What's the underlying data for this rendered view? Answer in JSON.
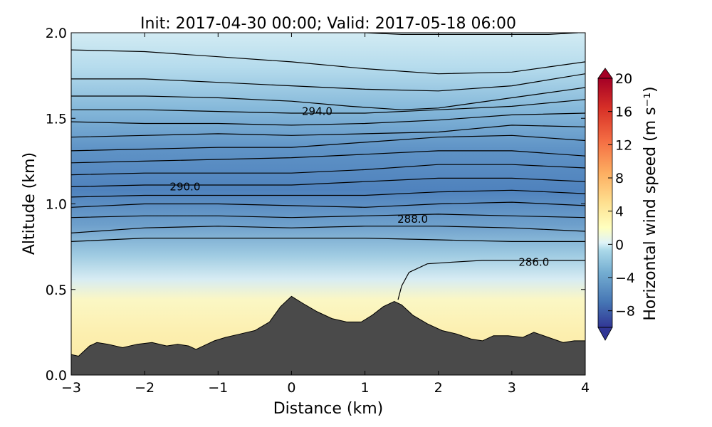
{
  "chart_data": {
    "type": "contourf",
    "title": "Init: 2017-04-30 00:00; Valid: 2017-05-18 06:00",
    "xlabel": "Distance (km)",
    "ylabel": "Altitude (km)",
    "xlim": [
      -3,
      4
    ],
    "ylim": [
      0.0,
      2.0
    ],
    "x_ticks": [
      {
        "value": -3,
        "label": "−3"
      },
      {
        "value": -2,
        "label": "−2"
      },
      {
        "value": -1,
        "label": "−1"
      },
      {
        "value": 0,
        "label": "0"
      },
      {
        "value": 1,
        "label": "1"
      },
      {
        "value": 2,
        "label": "2"
      },
      {
        "value": 3,
        "label": "3"
      },
      {
        "value": 4,
        "label": "4"
      }
    ],
    "y_ticks": [
      {
        "value": 0.0,
        "label": "0.0"
      },
      {
        "value": 0.5,
        "label": "0.5"
      },
      {
        "value": 1.0,
        "label": "1.0"
      },
      {
        "value": 1.5,
        "label": "1.5"
      },
      {
        "value": 2.0,
        "label": "2.0"
      }
    ],
    "colorbar": {
      "label": "Horizontal wind speed (m s⁻¹)",
      "vmin": -10,
      "vmax": 20,
      "ticks": [
        {
          "value": 20,
          "label": "20"
        },
        {
          "value": 16,
          "label": "16"
        },
        {
          "value": 12,
          "label": "12"
        },
        {
          "value": 8,
          "label": "8"
        },
        {
          "value": 4,
          "label": "4"
        },
        {
          "value": 0,
          "label": "0"
        },
        {
          "value": -4,
          "label": "−4"
        },
        {
          "value": -8,
          "label": "−8"
        }
      ],
      "colors": [
        "#313695",
        "#4575b4",
        "#74add1",
        "#abd9e9",
        "#e0f3f8",
        "#ffffbf",
        "#fee090",
        "#fdae61",
        "#f46d43",
        "#d73027",
        "#a50026"
      ]
    },
    "terrain": {
      "color": "#4a4a4a",
      "x": [
        -3.0,
        -2.9,
        -2.75,
        -2.65,
        -2.5,
        -2.3,
        -2.1,
        -1.9,
        -1.7,
        -1.55,
        -1.4,
        -1.3,
        -1.2,
        -1.05,
        -0.9,
        -0.7,
        -0.5,
        -0.3,
        -0.15,
        0.0,
        0.15,
        0.35,
        0.55,
        0.75,
        0.95,
        1.1,
        1.25,
        1.4,
        1.5,
        1.65,
        1.85,
        2.05,
        2.25,
        2.45,
        2.6,
        2.75,
        2.95,
        3.15,
        3.3,
        3.5,
        3.7,
        3.85,
        4.0
      ],
      "y": [
        0.12,
        0.11,
        0.17,
        0.19,
        0.18,
        0.16,
        0.18,
        0.19,
        0.17,
        0.18,
        0.17,
        0.15,
        0.17,
        0.2,
        0.22,
        0.24,
        0.26,
        0.31,
        0.4,
        0.46,
        0.42,
        0.37,
        0.33,
        0.31,
        0.31,
        0.35,
        0.4,
        0.43,
        0.41,
        0.35,
        0.3,
        0.26,
        0.24,
        0.21,
        0.2,
        0.23,
        0.23,
        0.22,
        0.25,
        0.22,
        0.19,
        0.2,
        0.2
      ]
    },
    "contours": [
      {
        "level": 286.0,
        "label": "286.0",
        "label_x": 3.3,
        "label_y": 0.66,
        "x": [
          1.45,
          1.5,
          1.6,
          1.85,
          2.2,
          2.6,
          3.0,
          3.3,
          4.0
        ],
        "y": [
          0.44,
          0.52,
          0.6,
          0.65,
          0.66,
          0.67,
          0.67,
          0.67,
          0.67
        ]
      },
      {
        "level": 287.0,
        "x": [
          -3.0,
          -2.0,
          -1.0,
          0.0,
          1.0,
          2.0,
          3.0,
          4.0
        ],
        "y": [
          0.78,
          0.8,
          0.8,
          0.8,
          0.8,
          0.79,
          0.78,
          0.78
        ]
      },
      {
        "level": 288.0,
        "label": "288.0",
        "label_x": 1.65,
        "label_y": 0.91,
        "x": [
          -3.0,
          -2.0,
          -1.0,
          0.0,
          1.0,
          2.0,
          3.0,
          4.0
        ],
        "y": [
          0.83,
          0.86,
          0.87,
          0.86,
          0.87,
          0.87,
          0.86,
          0.84
        ]
      },
      {
        "level": 288.5,
        "x": [
          -3.0,
          -2.0,
          -1.0,
          0.0,
          1.0,
          2.0,
          3.0,
          4.0
        ],
        "y": [
          0.92,
          0.93,
          0.93,
          0.92,
          0.93,
          0.94,
          0.93,
          0.92
        ]
      },
      {
        "level": 289.0,
        "x": [
          -3.0,
          -2.0,
          -1.0,
          0.0,
          1.0,
          2.0,
          3.0,
          4.0
        ],
        "y": [
          0.98,
          1.0,
          1.0,
          0.99,
          0.98,
          1.0,
          1.01,
          0.99
        ]
      },
      {
        "level": 289.5,
        "x": [
          -3.0,
          -2.0,
          -1.0,
          0.0,
          1.0,
          2.0,
          3.0,
          4.0
        ],
        "y": [
          1.04,
          1.05,
          1.05,
          1.05,
          1.05,
          1.07,
          1.08,
          1.06
        ]
      },
      {
        "level": 290.0,
        "label": "290.0",
        "label_x": -1.45,
        "label_y": 1.1,
        "x": [
          -3.0,
          -2.0,
          -1.0,
          0.0,
          1.0,
          2.0,
          3.0,
          4.0
        ],
        "y": [
          1.1,
          1.11,
          1.11,
          1.11,
          1.13,
          1.15,
          1.15,
          1.13
        ]
      },
      {
        "level": 290.5,
        "x": [
          -3.0,
          -2.0,
          -1.0,
          0.0,
          1.0,
          2.0,
          3.0,
          4.0
        ],
        "y": [
          1.17,
          1.18,
          1.18,
          1.18,
          1.2,
          1.23,
          1.23,
          1.21
        ]
      },
      {
        "level": 291.0,
        "x": [
          -3.0,
          -2.0,
          -1.0,
          0.0,
          1.0,
          2.0,
          3.0,
          4.0
        ],
        "y": [
          1.24,
          1.25,
          1.26,
          1.27,
          1.29,
          1.31,
          1.31,
          1.28
        ]
      },
      {
        "level": 291.5,
        "x": [
          -3.0,
          -2.0,
          -1.0,
          0.0,
          1.0,
          2.0,
          3.0,
          4.0
        ],
        "y": [
          1.31,
          1.32,
          1.33,
          1.33,
          1.36,
          1.39,
          1.4,
          1.37
        ]
      },
      {
        "level": 292.0,
        "x": [
          -3.0,
          -2.0,
          -1.0,
          0.0,
          1.0,
          2.0,
          3.0,
          4.0
        ],
        "y": [
          1.39,
          1.4,
          1.41,
          1.4,
          1.41,
          1.42,
          1.46,
          1.45
        ]
      },
      {
        "level": 292.5,
        "x": [
          -3.0,
          -2.0,
          -1.0,
          0.0,
          1.0,
          2.0,
          3.0,
          4.0
        ],
        "y": [
          1.48,
          1.47,
          1.47,
          1.46,
          1.47,
          1.49,
          1.52,
          1.53
        ]
      },
      {
        "level": 293.0,
        "x": [
          -3.0,
          -2.0,
          -1.0,
          0.0,
          1.0,
          2.0,
          3.0,
          4.0
        ],
        "y": [
          1.55,
          1.55,
          1.54,
          1.53,
          1.53,
          1.55,
          1.57,
          1.61
        ]
      },
      {
        "level": 294.0,
        "label": "294.0",
        "label_x": 0.35,
        "label_y": 1.54,
        "x": [
          -3.0,
          -2.0,
          -1.0,
          0.0,
          0.8,
          1.5,
          2.0,
          3.0,
          4.0
        ],
        "y": [
          1.63,
          1.63,
          1.62,
          1.6,
          1.57,
          1.55,
          1.56,
          1.62,
          1.68
        ]
      },
      {
        "level": 295.0,
        "x": [
          -3.0,
          -2.0,
          -1.0,
          0.0,
          1.0,
          2.0,
          3.0,
          4.0
        ],
        "y": [
          1.73,
          1.73,
          1.71,
          1.69,
          1.67,
          1.66,
          1.69,
          1.76
        ]
      },
      {
        "level": 296.0,
        "x": [
          -3.0,
          -2.0,
          -1.0,
          0.0,
          1.0,
          2.0,
          3.0,
          4.0
        ],
        "y": [
          1.9,
          1.89,
          1.86,
          1.83,
          1.79,
          1.76,
          1.77,
          1.83
        ]
      },
      {
        "level": 297.0,
        "x": [
          1.0,
          1.5,
          2.0,
          2.5,
          3.0,
          3.5,
          3.9
        ],
        "y": [
          2.0,
          1.99,
          1.99,
          1.99,
          1.99,
          1.99,
          2.0
        ]
      }
    ]
  }
}
